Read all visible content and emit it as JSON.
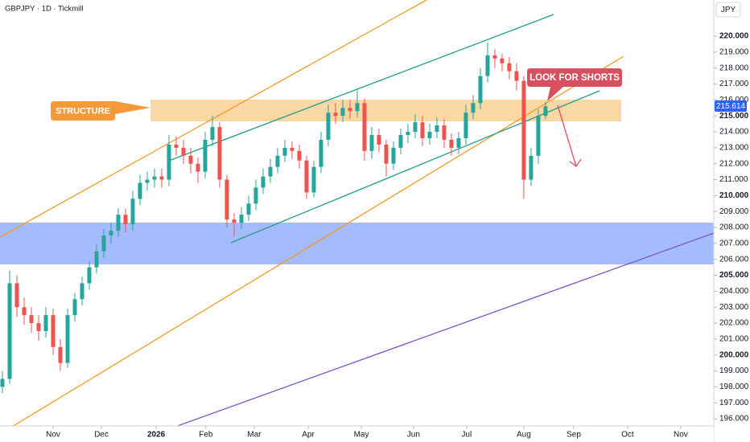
{
  "chart_data": {
    "type": "candlestick",
    "title": "GBPJPY · 1D · Tickmill",
    "currency": "JPY",
    "last_price": 215.614,
    "annotations": [
      "STRUCTURE",
      "LOOK FOR SHORTS"
    ],
    "up_color": "#26a69a",
    "down_color": "#ef5350",
    "xlim": [
      0,
      295.7
    ],
    "ylim": [
      195.55,
      222.27
    ],
    "xticks": [
      {
        "value": 22,
        "label": "Nov"
      },
      {
        "value": 42,
        "label": "Dec"
      },
      {
        "value": 64.7,
        "label": "2026"
      },
      {
        "value": 85.3,
        "label": "Feb"
      },
      {
        "value": 105.3,
        "label": "Mar"
      },
      {
        "value": 127.7,
        "label": "Apr"
      },
      {
        "value": 149.7,
        "label": "May"
      },
      {
        "value": 171.3,
        "label": "Jun"
      },
      {
        "value": 193.3,
        "label": "Jul"
      },
      {
        "value": 217,
        "label": "Aug"
      },
      {
        "value": 237.7,
        "label": "Sep"
      },
      {
        "value": 260,
        "label": "Oct"
      },
      {
        "value": 282,
        "label": "Nov"
      }
    ],
    "yticks": [
      {
        "value": 196,
        "label": "196.000"
      },
      {
        "value": 197,
        "label": "197.000"
      },
      {
        "value": 198,
        "label": "198.000"
      },
      {
        "value": 199,
        "label": "199.000"
      },
      {
        "value": 200,
        "label": "200.000"
      },
      {
        "value": 201,
        "label": "201.000"
      },
      {
        "value": 202,
        "label": "202.000"
      },
      {
        "value": 203,
        "label": "203.000"
      },
      {
        "value": 204,
        "label": "204.000"
      },
      {
        "value": 205,
        "label": "205.000"
      },
      {
        "value": 206,
        "label": "206.000"
      },
      {
        "value": 207,
        "label": "207.000"
      },
      {
        "value": 208,
        "label": "208.000"
      },
      {
        "value": 209,
        "label": "209.000"
      },
      {
        "value": 210,
        "label": "210.000"
      },
      {
        "value": 211,
        "label": "211.000"
      },
      {
        "value": 212,
        "label": "212.000"
      },
      {
        "value": 213,
        "label": "213.000"
      },
      {
        "value": 214,
        "label": "214.000"
      },
      {
        "value": 215,
        "label": "215.000"
      },
      {
        "value": 216,
        "label": "216.000"
      },
      {
        "value": 217,
        "label": "217.000"
      },
      {
        "value": 218,
        "label": "218.000"
      },
      {
        "value": 219,
        "label": "219.000"
      },
      {
        "value": 220,
        "label": "220.000"
      }
    ],
    "x": [
      1,
      4,
      7,
      10,
      13,
      16,
      19,
      22,
      25,
      28,
      31,
      34,
      37,
      40,
      43,
      46,
      49,
      52,
      55,
      58,
      61,
      64,
      67,
      70,
      73,
      76,
      79,
      82,
      85,
      88,
      91,
      94,
      97,
      100,
      103,
      106,
      109,
      112,
      115,
      118,
      121,
      124,
      127,
      130,
      133,
      136,
      139,
      142,
      145,
      148,
      151,
      154,
      157,
      160,
      163,
      166,
      169,
      172,
      175,
      178,
      181,
      184,
      187,
      190,
      193,
      196,
      199,
      202,
      205,
      208,
      211,
      214,
      217,
      220,
      223,
      226
    ],
    "open": [
      198.0,
      198.5,
      204.5,
      203.0,
      202.5,
      202.0,
      201.5,
      202.5,
      200.5,
      199.5,
      202.5,
      203.5,
      204.5,
      205.5,
      206.5,
      207.5,
      207.8,
      208.8,
      208.2,
      209.8,
      210.8,
      211.0,
      211.2,
      211.0,
      213.2,
      213.0,
      212.5,
      212.0,
      211.5,
      213.5,
      214.3,
      211.0,
      208.5,
      208.3,
      208.8,
      209.5,
      210.5,
      211.2,
      211.8,
      212.5,
      213.0,
      212.8,
      212.2,
      210.2,
      211.8,
      213.5,
      215.2,
      215.0,
      215.5,
      215.3,
      215.8,
      212.8,
      213.8,
      213.2,
      212.0,
      213.0,
      213.8,
      214.0,
      214.6,
      213.6,
      214.0,
      214.4,
      213.5,
      213.0,
      213.6,
      215.2,
      215.8,
      217.5,
      218.8,
      218.6,
      218.3,
      217.8,
      217.2,
      211.0,
      212.5,
      215.0
    ],
    "high": [
      199.0,
      205.3,
      205.0,
      203.6,
      203.0,
      202.5,
      203.0,
      202.9,
      201.0,
      202.9,
      203.9,
      204.9,
      205.9,
      206.9,
      207.9,
      208.3,
      209.2,
      209.2,
      210.3,
      211.3,
      211.5,
      211.7,
      211.7,
      213.8,
      213.7,
      213.5,
      213.0,
      212.4,
      214.0,
      215.0,
      214.6,
      211.3,
      208.9,
      209.3,
      210.0,
      211.0,
      211.7,
      212.3,
      213.0,
      213.5,
      213.4,
      213.2,
      212.5,
      212.2,
      214.0,
      215.7,
      215.8,
      216.0,
      216.0,
      216.6,
      216.1,
      214.3,
      214.2,
      213.5,
      213.4,
      214.2,
      214.5,
      215.1,
      215.0,
      214.5,
      214.9,
      214.8,
      213.9,
      214.0,
      215.7,
      216.3,
      218.0,
      219.6,
      219.2,
      218.9,
      218.7,
      218.3,
      217.5,
      213.0,
      215.4,
      215.9
    ],
    "low": [
      197.6,
      198.2,
      202.4,
      201.9,
      201.4,
      200.9,
      201.1,
      200.0,
      199.0,
      199.2,
      202.1,
      203.1,
      204.1,
      205.1,
      206.1,
      207.0,
      207.4,
      207.7,
      207.8,
      209.4,
      210.3,
      210.5,
      210.5,
      210.6,
      212.5,
      212.0,
      211.4,
      210.8,
      211.1,
      213.1,
      210.5,
      208.0,
      207.4,
      207.9,
      208.4,
      209.1,
      210.1,
      210.8,
      211.4,
      212.1,
      212.3,
      211.7,
      209.8,
      209.9,
      211.4,
      213.1,
      214.5,
      214.6,
      214.8,
      214.9,
      212.2,
      212.3,
      212.7,
      211.2,
      211.6,
      212.6,
      213.3,
      213.6,
      213.1,
      213.2,
      213.6,
      213.0,
      212.5,
      212.6,
      213.2,
      214.8,
      215.4,
      217.1,
      218.0,
      217.8,
      217.3,
      216.6,
      209.8,
      210.6,
      212.0,
      214.8
    ],
    "close": [
      198.5,
      204.5,
      203.0,
      202.5,
      202.0,
      201.5,
      202.5,
      200.5,
      199.5,
      202.5,
      203.5,
      204.5,
      205.5,
      206.5,
      207.5,
      207.8,
      208.8,
      208.2,
      209.8,
      210.8,
      211.0,
      211.2,
      211.0,
      213.2,
      213.0,
      212.5,
      212.0,
      211.5,
      213.5,
      214.3,
      211.0,
      208.5,
      208.3,
      208.8,
      209.5,
      210.5,
      211.2,
      211.8,
      212.5,
      213.0,
      212.8,
      212.2,
      210.2,
      211.8,
      213.5,
      215.2,
      215.0,
      215.5,
      215.3,
      215.8,
      212.8,
      213.8,
      213.2,
      212.0,
      213.0,
      213.8,
      214.0,
      214.6,
      213.6,
      214.0,
      214.4,
      213.5,
      213.0,
      213.6,
      215.2,
      215.8,
      217.5,
      218.8,
      218.6,
      218.3,
      217.8,
      217.2,
      211.0,
      212.5,
      215.0,
      215.6
    ]
  }
}
